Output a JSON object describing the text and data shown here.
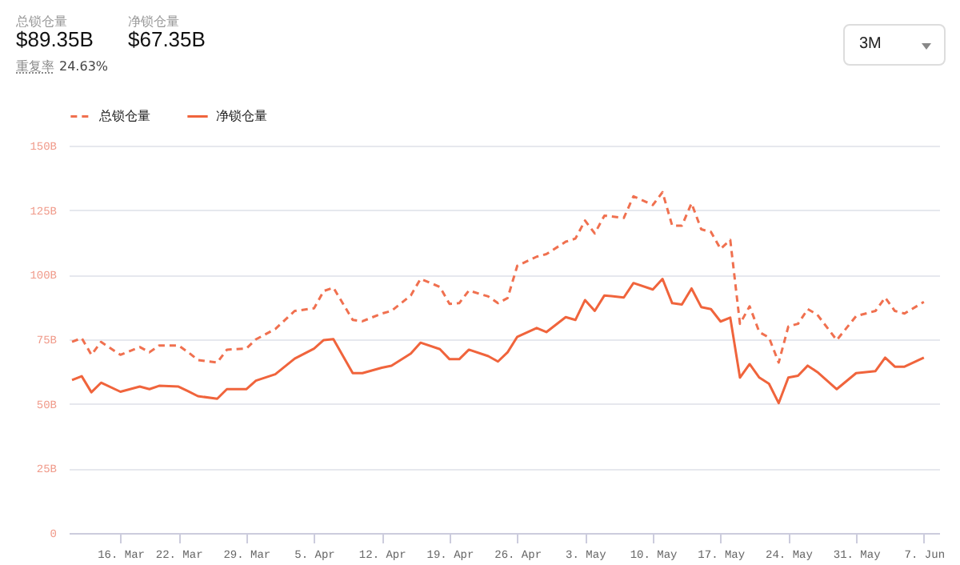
{
  "chart_data": {
    "type": "line",
    "annotations": [
      "总锁仓量",
      "$89.35B",
      "净锁仓量",
      "$67.35B",
      "重复率",
      "24.63%",
      "3M"
    ],
    "x": [
      "--03-11",
      "--03-12",
      "--03-13",
      "--03-14",
      "--03-16",
      "--03-18",
      "--03-19",
      "--03-20",
      "--03-22",
      "--03-23",
      "--03-24",
      "--03-26",
      "--03-27",
      "--03-29",
      "--03-30",
      "--04-01",
      "--04-03",
      "--04-05",
      "--04-06",
      "--04-07",
      "--04-09",
      "--04-10",
      "--04-12",
      "--04-13",
      "--04-15",
      "--04-16",
      "--04-18",
      "--04-19",
      "--04-20",
      "--04-21",
      "--04-23",
      "--04-24",
      "--04-25",
      "--04-26",
      "--04-28",
      "--04-29",
      "--05-01",
      "--05-02",
      "--05-03",
      "--05-04",
      "--05-05",
      "--05-07",
      "--05-08",
      "--05-10",
      "--05-11",
      "--05-12",
      "--05-13",
      "--05-14",
      "--05-15",
      "--05-16",
      "--05-17",
      "--05-18",
      "--05-19",
      "--05-20",
      "--05-21",
      "--05-22",
      "--05-23",
      "--05-24",
      "--05-25",
      "--05-26",
      "--05-27",
      "--05-29",
      "--05-31",
      "--06-02",
      "--06-03",
      "--06-04",
      "--06-05",
      "--06-07"
    ],
    "series": [
      {
        "name": "总锁仓量",
        "color": "#f0704f",
        "line_style": "dashed",
        "values": [
          74,
          75.5,
          69,
          74,
          69,
          72,
          70,
          72.6,
          72.6,
          70,
          67,
          66,
          71,
          71.4,
          75,
          79,
          86,
          87,
          93.7,
          95,
          82.5,
          82,
          85,
          86,
          92,
          98.4,
          95.3,
          88.7,
          89,
          93.9,
          91.6,
          89,
          91,
          103.5,
          107,
          108,
          112.8,
          114,
          121,
          116,
          122.9,
          122,
          130.4,
          127,
          132,
          119,
          119,
          127.7,
          117.6,
          116.6,
          110,
          113.5,
          81,
          87.8,
          77.8,
          75.7,
          66,
          80,
          81,
          86.7,
          84.5,
          74.7,
          84,
          86,
          91.2,
          86,
          85,
          89.5
        ]
      },
      {
        "name": "净锁仓量",
        "color": "#f0643c",
        "line_style": "solid",
        "values": [
          59.2,
          60.7,
          54.5,
          58.2,
          54.7,
          56.7,
          55.7,
          57,
          56.7,
          54.9,
          53,
          52,
          55.7,
          55.7,
          59,
          61.5,
          67.5,
          71.4,
          74.7,
          75.1,
          61.9,
          61.9,
          64,
          64.8,
          69.5,
          73.7,
          71.2,
          67.3,
          67.3,
          71,
          68.5,
          66.4,
          70,
          76,
          79.4,
          77.8,
          83.6,
          82.5,
          90.2,
          86,
          92,
          91.2,
          96.8,
          94.3,
          98.4,
          89,
          88.5,
          94.7,
          87.5,
          86.7,
          81.9,
          83.4,
          60.2,
          65.4,
          60.2,
          57.8,
          50.3,
          60.2,
          60.9,
          64.8,
          62.3,
          55.7,
          61.9,
          62.7,
          67.9,
          64.4,
          64.4,
          67.9
        ]
      }
    ],
    "xlim": [
      "--03-10T16:00",
      "--06-08T14:00"
    ],
    "xticks": [
      {
        "value": "--03-16",
        "label": "16. Mar"
      },
      {
        "value": "--03-22",
        "label": "22. Mar"
      },
      {
        "value": "--03-29",
        "label": "29. Mar"
      },
      {
        "value": "--04-05",
        "label": "5. Apr"
      },
      {
        "value": "--04-12",
        "label": "12. Apr"
      },
      {
        "value": "--04-19",
        "label": "19. Apr"
      },
      {
        "value": "--04-26",
        "label": "26. Apr"
      },
      {
        "value": "--05-03",
        "label": "3. May"
      },
      {
        "value": "--05-10",
        "label": "10. May"
      },
      {
        "value": "--05-17",
        "label": "17. May"
      },
      {
        "value": "--05-24",
        "label": "24. May"
      },
      {
        "value": "--05-31",
        "label": "31. May"
      },
      {
        "value": "--06-07",
        "label": "7. Jun"
      }
    ],
    "ylim": [
      0,
      150
    ],
    "yticks": [
      0,
      {
        "value": 25,
        "label": "25B"
      },
      {
        "value": 50,
        "label": "50B"
      },
      {
        "value": 75,
        "label": "75B"
      },
      {
        "value": 100,
        "label": "100B"
      },
      {
        "value": 125,
        "label": "125B"
      },
      {
        "value": 150,
        "label": "150B"
      }
    ],
    "grid": "y",
    "legend": "top left"
  }
}
